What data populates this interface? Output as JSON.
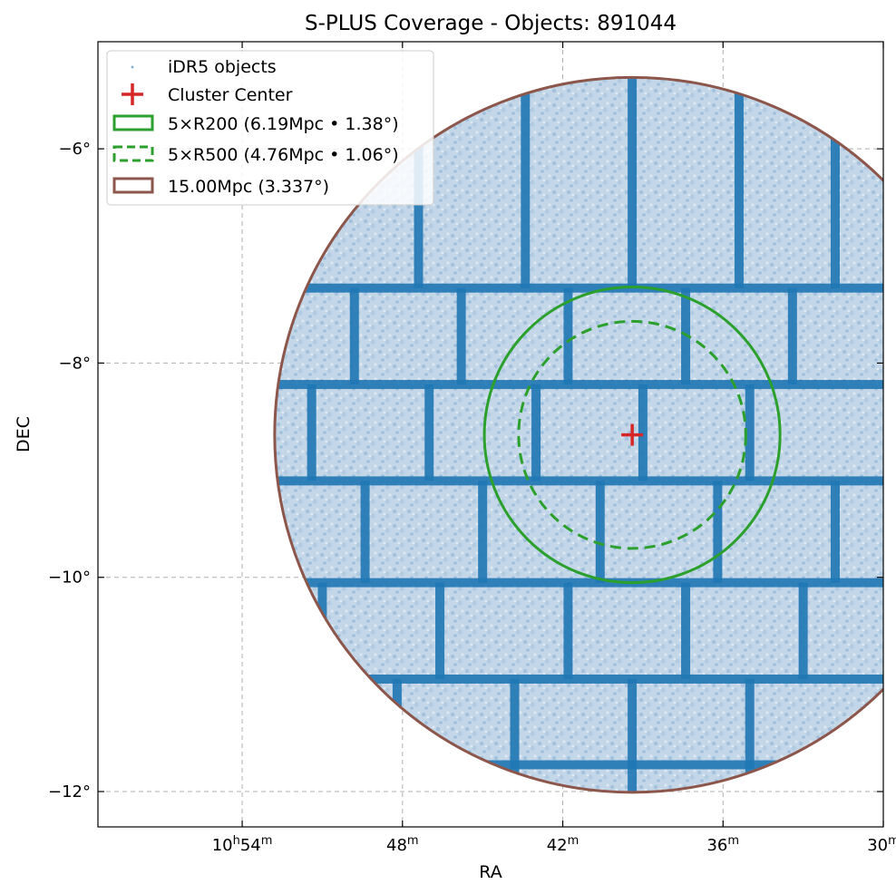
{
  "chart_data": {
    "type": "scatter",
    "title": "S-PLUS Coverage - Objects: 891044",
    "xlabel": "RA",
    "ylabel": "DEC",
    "x_axis": {
      "units": "hours (RA)",
      "inverted": true,
      "range_deg": [
        164.85,
        157.5
      ],
      "ticks": [
        {
          "value_deg": 163.5,
          "h": "10",
          "m": "54"
        },
        {
          "value_deg": 162.0,
          "h": "",
          "m": "48"
        },
        {
          "value_deg": 160.5,
          "h": "",
          "m": "42"
        },
        {
          "value_deg": 159.0,
          "h": "",
          "m": "36"
        },
        {
          "value_deg": 157.5,
          "h": "",
          "m": "30"
        }
      ]
    },
    "y_axis": {
      "units": "degrees",
      "range": [
        -12.33,
        -5.0
      ],
      "ticks": [
        {
          "value": -6,
          "label": "−6°"
        },
        {
          "value": -8,
          "label": "−8°"
        },
        {
          "value": -10,
          "label": "−10°"
        },
        {
          "value": -12,
          "label": "−12°"
        }
      ]
    },
    "grid": true,
    "legend_position": "top-left",
    "cluster_center": {
      "ra_deg": 159.85,
      "dec": -8.67
    },
    "series": [
      {
        "name": "iDR5 objects",
        "kind": "scatter",
        "color": "#1f77b4",
        "count": 891044
      },
      {
        "name": "Cluster Center",
        "kind": "marker",
        "color": "#d62728",
        "marker": "plus"
      },
      {
        "name": "5×R200 (6.19Mpc • 1.38°)",
        "kind": "circle",
        "color": "#2ca02c",
        "linestyle": "solid",
        "radius_deg": 1.38
      },
      {
        "name": "5×R500 (4.76Mpc • 1.06°)",
        "kind": "circle",
        "color": "#2ca02c",
        "linestyle": "dashed",
        "radius_deg": 1.06
      },
      {
        "name": "15.00Mpc (3.337°)",
        "kind": "circle",
        "color": "#8c564b",
        "linestyle": "solid",
        "radius_deg": 3.337
      }
    ]
  }
}
